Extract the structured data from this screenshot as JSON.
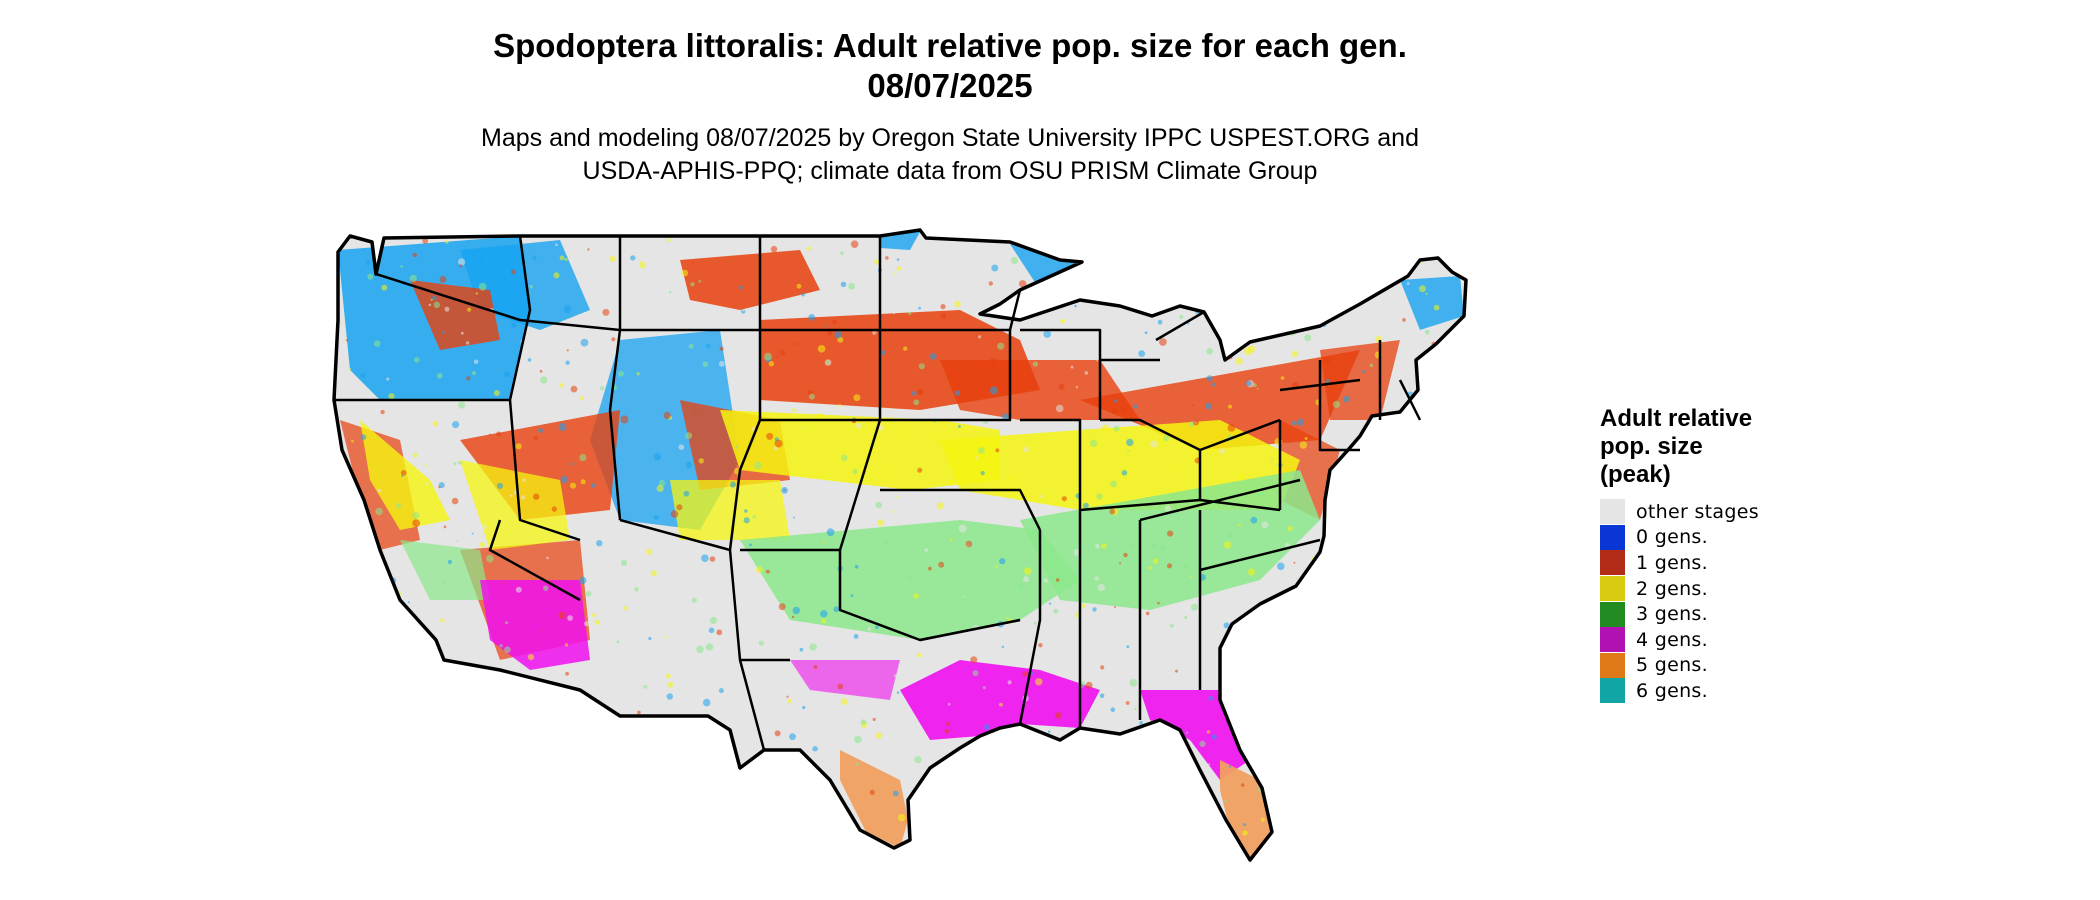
{
  "title": {
    "line1": "Spodoptera littoralis: Adult relative pop. size for each gen.",
    "line2": "08/07/2025"
  },
  "subtitle": {
    "line1": "Maps and modeling 08/07/2025 by Oregon State University IPPC USPEST.ORG and",
    "line2": "USDA-APHIS-PPQ; climate data from OSU PRISM Climate Group"
  },
  "legend": {
    "title_line1": "Adult relative",
    "title_line2": "pop. size",
    "title_line3": "(peak)",
    "items": [
      {
        "label": "other stages",
        "color": "#e5e5e5"
      },
      {
        "label": "0 gens.",
        "color": "#0a36d6"
      },
      {
        "label": "1 gens.",
        "color": "#b22c18"
      },
      {
        "label": "2 gens.",
        "color": "#d8cb12"
      },
      {
        "label": "3 gens.",
        "color": "#228b22"
      },
      {
        "label": "4 gens.",
        "color": "#b011b0"
      },
      {
        "label": "5 gens.",
        "color": "#e07a18"
      },
      {
        "label": "6 gens.",
        "color": "#12a5a5"
      }
    ]
  },
  "map": {
    "background_color": "#e5e5e5",
    "border_color": "#000000",
    "zone_colors": {
      "blue_light": "#17a3f0",
      "red_orange": "#e8400d",
      "yellow": "#f5f510",
      "green_light": "#8ce88c",
      "magenta": "#f010f0",
      "orange_light": "#f0a060"
    }
  }
}
